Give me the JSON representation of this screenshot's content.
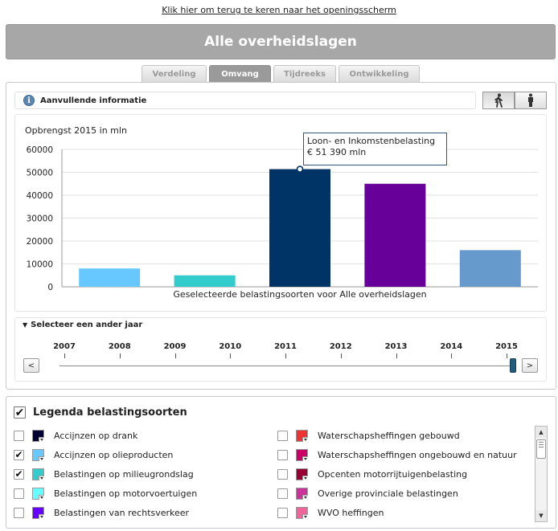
{
  "top_link": "Klik hier om terug te keren naar het openingsscherm",
  "title": "Alle overheidslagen",
  "tabs": [
    {
      "label": "Verdeling",
      "active": false
    },
    {
      "label": "Omvang",
      "active": true
    },
    {
      "label": "Tijdreeks",
      "active": false
    },
    {
      "label": "Ontwikkeling",
      "active": false
    }
  ],
  "info_label": "Aanvullende informatie",
  "chart_data": {
    "type": "bar",
    "title": "Opbrengst 2015 in mln",
    "xlabel": "Geselecteerde belastingsoorten  voor Alle overheidslagen",
    "ylabel": "",
    "ylim": [
      0,
      60000
    ],
    "yticks": [
      0,
      10000,
      20000,
      30000,
      40000,
      50000,
      60000
    ],
    "grid": true,
    "categories": [
      "Accijnzen op olieproducten",
      "Belastingen op milieugrondslag",
      "Loon- en Inkomstenbelasting",
      "",
      ""
    ],
    "values": [
      8000,
      5000,
      51390,
      45000,
      16000
    ],
    "colors": [
      "#66c8ff",
      "#33cccc",
      "#003366",
      "#660099",
      "#6699cc"
    ],
    "tooltip": {
      "label": "Loon- en Inkomstenbelasting",
      "value": "€ 51 390 mln",
      "bar_index": 2
    }
  },
  "year_selector": {
    "label": "Selecteer een ander jaar",
    "years": [
      "2007",
      "2008",
      "2009",
      "2010",
      "2011",
      "2012",
      "2013",
      "2014",
      "2015"
    ],
    "selected": "2015",
    "prev": "<",
    "next": ">"
  },
  "legend": {
    "title": "Legenda belastingsoorten",
    "title_checked": "✔",
    "left": [
      {
        "name": "Accijnzen op drank",
        "color": "#000033",
        "checked": ""
      },
      {
        "name": "Accijnzen op olieproducten",
        "color": "#66c8ff",
        "checked": "✔"
      },
      {
        "name": "Belastingen op milieugrondslag",
        "color": "#33cccc",
        "checked": "✔"
      },
      {
        "name": "Belastingen op motorvoertuigen",
        "color": "#66ffff",
        "checked": ""
      },
      {
        "name": "Belastingen van rechtsverkeer",
        "color": "#6600ff",
        "checked": ""
      }
    ],
    "right": [
      {
        "name": "Waterschapsheffingen gebouwd",
        "color": "#ee3333",
        "checked": ""
      },
      {
        "name": "Waterschapsheffingen ongebouwd en natuur",
        "color": "#cc0066",
        "checked": ""
      },
      {
        "name": "Opcenten motorrijtuigenbelasting",
        "color": "#990033",
        "checked": ""
      },
      {
        "name": "Overige provinciale belastingen",
        "color": "#cc3399",
        "checked": ""
      },
      {
        "name": "WVO heffingen",
        "color": "#ee6699",
        "checked": ""
      }
    ]
  },
  "scroll": {
    "up": "▲",
    "down": "▼"
  }
}
